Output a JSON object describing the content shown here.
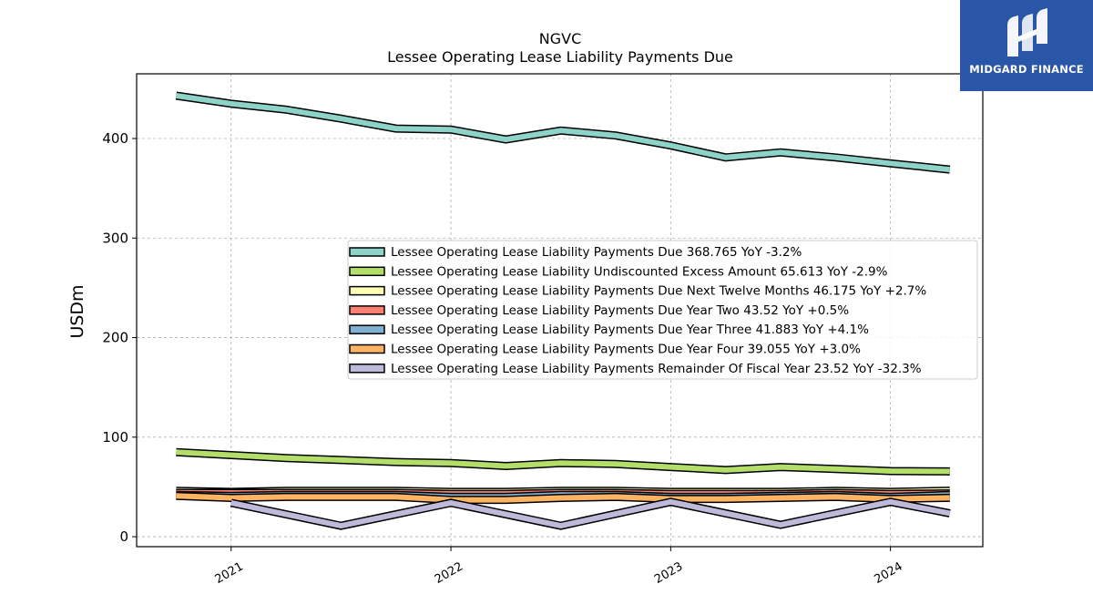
{
  "brand": {
    "name": "MIDGARD FINANCE",
    "bg_color": "#2a56a8"
  },
  "chart_data": {
    "type": "line",
    "title": "NGVC",
    "subtitle": "Lessee Operating Lease Liability Payments Due",
    "xlabel": "",
    "ylabel": "USDm",
    "ylim": [
      -10,
      465
    ],
    "yticks": [
      0,
      100,
      200,
      300,
      400
    ],
    "xlim": [
      2020.57,
      2024.42
    ],
    "xticks": [
      {
        "value": 2021,
        "label": "2021"
      },
      {
        "value": 2022,
        "label": "2022"
      },
      {
        "value": 2023,
        "label": "2023"
      },
      {
        "value": 2024,
        "label": "2024"
      }
    ],
    "grid": true,
    "legend_position": "center-right",
    "x": [
      2020.75,
      2021.0,
      2021.25,
      2021.5,
      2021.75,
      2022.0,
      2022.25,
      2022.5,
      2022.75,
      2023.0,
      2023.25,
      2023.5,
      2023.75,
      2024.0,
      2024.27
    ],
    "series": [
      {
        "name": "Lessee Operating Lease Liability Payments Due",
        "legend": "Lessee Operating Lease Liability Payments Due  368.765 YoY -3.2%",
        "color": "#8dd3c7",
        "values": [
          443,
          435,
          429,
          420,
          410,
          409,
          399,
          408,
          403,
          393,
          381,
          386,
          381,
          375,
          368.765
        ]
      },
      {
        "name": "Lessee Operating Lease Liability Undiscounted Excess Amount",
        "legend": "Lessee Operating Lease Liability Undiscounted Excess Amount  65.613 YoY -2.9%",
        "color": "#b3de69",
        "values": [
          85,
          82,
          79,
          77,
          75,
          74,
          71,
          74,
          73,
          70,
          67,
          70,
          68,
          66,
          65.613
        ]
      },
      {
        "name": "Lessee Operating Lease Liability Payments Due Next Twelve Months",
        "legend": "Lessee Operating Lease Liability Payments Due Next Twelve Months  46.175 YoY +2.7%",
        "color": "#ffffb3",
        "values": [
          46,
          45,
          46,
          46,
          46,
          45,
          45,
          46,
          46,
          45,
          45,
          45,
          46,
          45,
          46.175
        ]
      },
      {
        "name": "Lessee Operating Lease Liability Payments Due Year Two",
        "legend": "Lessee Operating Lease Liability Payments Due Year Two  43.52 YoY +0.5%",
        "color": "#fb8072",
        "values": [
          44,
          44,
          44,
          44,
          44,
          43,
          43,
          44,
          44,
          43,
          43,
          43,
          44,
          43,
          43.52
        ]
      },
      {
        "name": "Lessee Operating Lease Liability Payments Due Year Three",
        "legend": "Lessee Operating Lease Liability Payments Due Year Three  41.883 YoY +4.1%",
        "color": "#80b1d3",
        "values": [
          42,
          41,
          42,
          42,
          42,
          40,
          40,
          42,
          42,
          40,
          40,
          41,
          42,
          40,
          41.883
        ]
      },
      {
        "name": "Lessee Operating Lease Liability Payments Due Year Four",
        "legend": "Lessee Operating Lease Liability Payments Due Year Four  39.055 YoY +3.0%",
        "color": "#fdb462",
        "values": [
          41,
          39,
          40,
          40,
          40,
          37,
          37,
          39,
          40,
          38,
          38,
          39,
          40,
          38,
          39.055
        ]
      },
      {
        "name": "Lessee Operating Lease Liability Payments Remainder Of Fiscal Year",
        "legend": "Lessee Operating Lease Liability Payments Remainder Of Fiscal Year  23.52 YoY -32.3%",
        "color": "#bebada",
        "values": [
          null,
          34,
          null,
          11,
          null,
          34,
          null,
          11,
          null,
          35,
          null,
          12,
          null,
          35,
          23.52
        ]
      }
    ]
  }
}
